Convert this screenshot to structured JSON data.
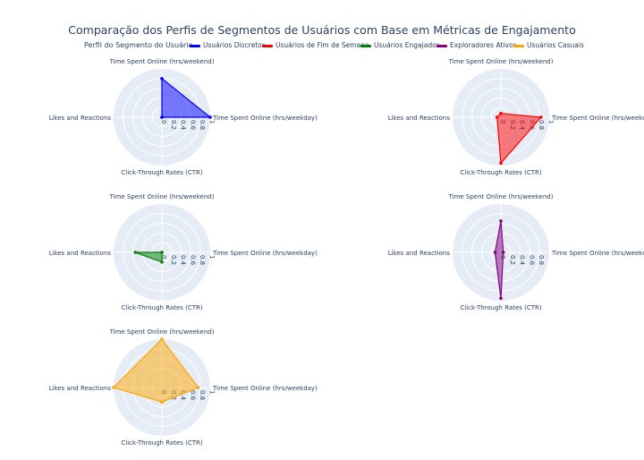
{
  "title": "Comparação dos Perfis de Segmentos de Usuários com Base em Métricas de Engajamento",
  "chart_data": {
    "type": "radar",
    "legend_title": "Perfil do Segmento do Usuário",
    "legend_placement": "top",
    "axes": [
      "Time Spent Online (hrs/weekday)",
      "Time Spent Online (hrs/weekend)",
      "Likes and Reactions",
      "Click-Through Rates (CTR)"
    ],
    "radial_ticks": [
      "0",
      "0.2",
      "0.4",
      "0.6",
      "0.8",
      "1"
    ],
    "radial_range": [
      0,
      1
    ],
    "series": [
      {
        "name": "Usuários Discretos",
        "color": "#0000ff",
        "fill": "rgba(0,0,255,0.5)",
        "values": [
          1.0,
          0.8,
          0.0,
          0.0
        ],
        "ticks": [
          "0",
          "0.2",
          "0.4",
          "0.6",
          "0.8",
          "1"
        ]
      },
      {
        "name": "Usuários de Fim de Semana",
        "color": "#ff0000",
        "fill": "rgba(255,0,0,0.5)",
        "values": [
          0.83,
          0.08,
          0.08,
          0.95
        ],
        "ticks": [
          "0",
          "0.2",
          "0.4",
          "0.6",
          "0.8",
          "1"
        ]
      },
      {
        "name": "Usuários Engajados",
        "color": "#008000",
        "fill": "rgba(0,128,0,0.5)",
        "values": [
          0.0,
          0.0,
          0.55,
          0.2
        ],
        "ticks": [
          "0",
          "0.2",
          "0.4",
          "0.6",
          "0.8",
          "1"
        ]
      },
      {
        "name": "Exploradores Ativos",
        "color": "#800080",
        "fill": "rgba(128,0,128,0.5)",
        "values": [
          0.05,
          0.65,
          0.12,
          0.95
        ],
        "ticks": [
          "0",
          "0.2",
          "0.4",
          "0.6",
          "0.8"
        ]
      },
      {
        "name": "Usuários Casuais",
        "color": "#ffa500",
        "fill": "rgba(255,165,0,0.5)",
        "values": [
          0.75,
          1.0,
          1.0,
          0.3
        ],
        "ticks": [
          "0",
          "0.2",
          "0.4",
          "0.6",
          "0.8",
          "1"
        ]
      }
    ]
  }
}
